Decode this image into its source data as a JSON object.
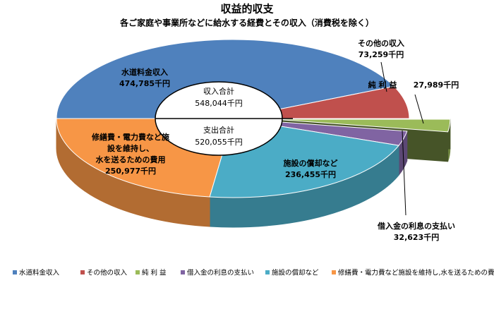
{
  "chart_data": {
    "type": "pie",
    "title": "収益的収支",
    "subtitle": "各ご家庭や事業所などに給水する経費とその収入（消費税を除く）",
    "series": [
      {
        "name": "収益的収支",
        "categories": [
          "水道料金収入",
          "その他の収入",
          "純 利 益",
          "借入金の利息の支払い",
          "施設の償却など",
          "修繕費・電力費など施設を維持し,水を送るための費用"
        ],
        "values": [
          474785,
          73259,
          27989,
          32623,
          236455,
          250977
        ],
        "value_labels": [
          "474,785千円",
          "73,259千円",
          "27,989千円",
          "32,623千円",
          "236,455千円",
          "250,977千円"
        ],
        "slice_labels": [
          [
            "水道料金収入"
          ],
          [
            "その他の収入"
          ],
          [
            "純 利 益"
          ],
          [
            "借入金の利息の支払い"
          ],
          [
            "施設の償却など"
          ],
          [
            "修繕費・電力費など施",
            "設を維持し、",
            "水を送るための費用"
          ]
        ],
        "colors": [
          "#4f81bd",
          "#c0504d",
          "#9bbb59",
          "#8064a2",
          "#4bacc6",
          "#f79646"
        ],
        "exploded": [
          false,
          false,
          true,
          false,
          false,
          false
        ]
      }
    ],
    "center_labels": [
      {
        "label": "収入合計",
        "value": 548044,
        "value_label": "548,044千円"
      },
      {
        "label": "支出合計",
        "value": 520055,
        "value_label": "520,055千円"
      }
    ],
    "legend": "bottom"
  }
}
